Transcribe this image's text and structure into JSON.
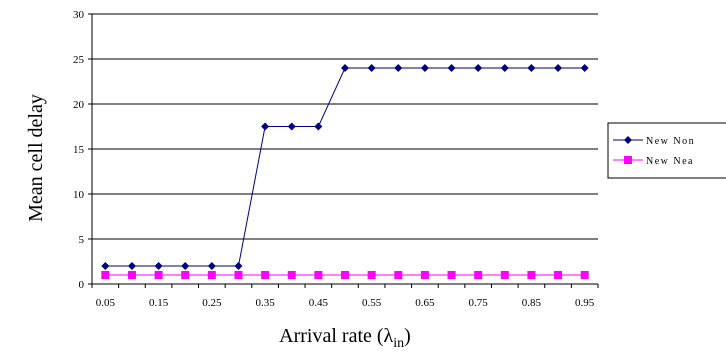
{
  "chart_data": {
    "type": "line",
    "xlabel": "Arrival rate (λin)",
    "xlabel_main": "Arrival rate (λ",
    "xlabel_sub": "in",
    "xlabel_close": ")",
    "ylabel": "Mean cell delay",
    "ylim": [
      0,
      30
    ],
    "yticks": [
      0,
      5,
      10,
      15,
      20,
      25,
      30
    ],
    "grid": "horizontal",
    "legend_position": "right",
    "x": [
      0.05,
      0.1,
      0.15,
      0.2,
      0.25,
      0.3,
      0.35,
      0.4,
      0.45,
      0.5,
      0.55,
      0.6,
      0.65,
      0.7,
      0.75,
      0.8,
      0.85,
      0.9,
      0.95
    ],
    "xtick_labels": [
      "0.05",
      "0.15",
      "0.25",
      "0.35",
      "0.45",
      "0.55",
      "0.65",
      "0.75",
      "0.85",
      "0.95"
    ],
    "xtick_values": [
      0.05,
      0.15,
      0.25,
      0.35,
      0.45,
      0.55,
      0.65,
      0.75,
      0.85,
      0.95
    ],
    "series": [
      {
        "name": "New Non",
        "color": "#000080",
        "marker": "diamond",
        "values": [
          2,
          2,
          2,
          2,
          2,
          2,
          17.5,
          17.5,
          17.5,
          24,
          24,
          24,
          24,
          24,
          24,
          24,
          24,
          24,
          24
        ]
      },
      {
        "name": "New Nea",
        "color": "#ff00ff",
        "marker": "square",
        "values": [
          1,
          1,
          1,
          1,
          1,
          1,
          1,
          1,
          1,
          1,
          1,
          1,
          1,
          1,
          1,
          1,
          1,
          1,
          1
        ]
      }
    ]
  }
}
